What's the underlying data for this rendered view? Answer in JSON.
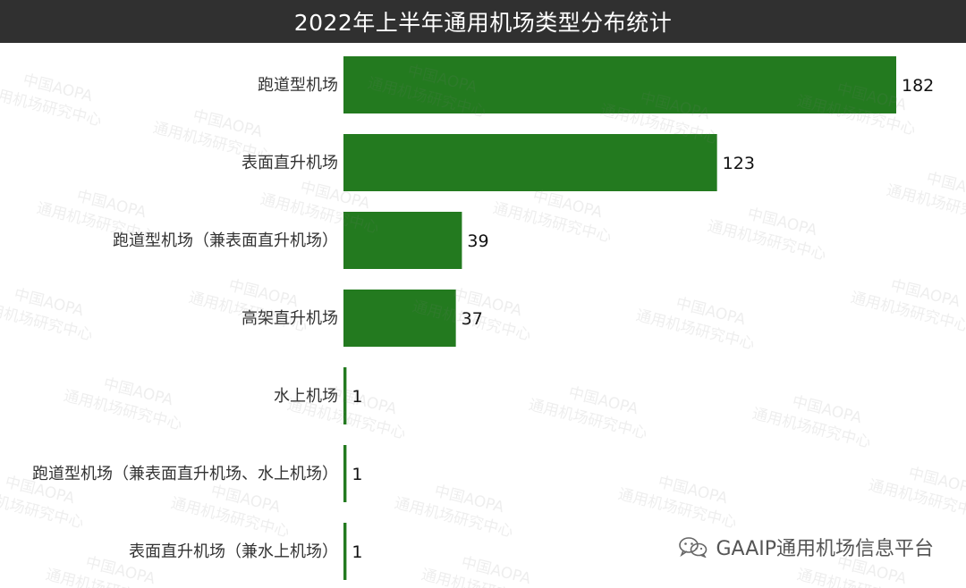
{
  "header": {
    "title": "2022年上半年通用机场类型分布统计"
  },
  "watermark": {
    "line1": "中国AOPA",
    "line2": "通用机场研究中心"
  },
  "source": {
    "label": "GAAIP通用机场信息平台",
    "icon": "wechat-icon"
  },
  "colors": {
    "bar": "#237a1f",
    "header_bg": "#303030",
    "label_text": "#333333",
    "value_text": "#111111"
  },
  "chart_data": {
    "type": "bar",
    "orientation": "horizontal",
    "title": "2022年上半年通用机场类型分布统计",
    "categories": [
      "跑道型机场",
      "表面直升机场",
      "跑道型机场（兼表面直升机场）",
      "高架直升机场",
      "水上机场",
      "跑道型机场（兼表面直升机场、水上机场）",
      "表面直升机场（兼水上机场）"
    ],
    "values": [
      182,
      123,
      39,
      37,
      1,
      1,
      1
    ],
    "xlim": [
      0,
      182
    ],
    "grid": false,
    "legend": "none",
    "data_labels": true
  }
}
